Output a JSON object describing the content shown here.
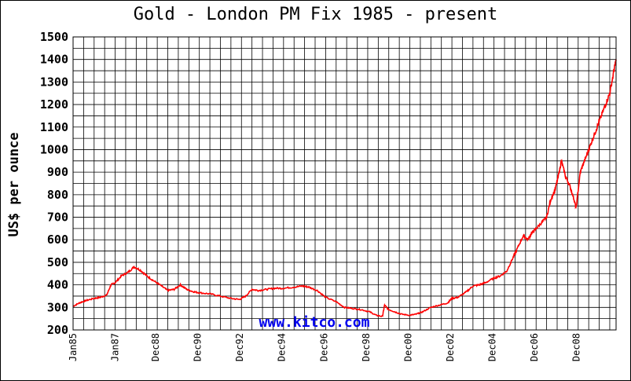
{
  "chart_data": {
    "type": "line",
    "title": "Gold - London PM Fix 1985 - present",
    "ylabel": "US$ per ounce",
    "xlabel": "",
    "ylim": [
      200,
      1500
    ],
    "yticks": [
      "200",
      "300",
      "400",
      "500",
      "600",
      "700",
      "800",
      "900",
      "1000",
      "1100",
      "1200",
      "1300",
      "1400",
      "1500"
    ],
    "xlim": [
      1985.0,
      2010.8
    ],
    "xticks": [
      {
        "label": "Jan85",
        "year": 1985.0
      },
      {
        "label": "Jan87",
        "year": 1987.0
      },
      {
        "label": "Dec88",
        "year": 1988.92
      },
      {
        "label": "Dec90",
        "year": 1990.92
      },
      {
        "label": "Dec92",
        "year": 1992.92
      },
      {
        "label": "Dec94",
        "year": 1994.92
      },
      {
        "label": "Dec96",
        "year": 1996.92
      },
      {
        "label": "Dec98",
        "year": 1998.92
      },
      {
        "label": "Dec00",
        "year": 2000.92
      },
      {
        "label": "Dec02",
        "year": 2002.92
      },
      {
        "label": "Dec04",
        "year": 2004.92
      },
      {
        "label": "Dec06",
        "year": 2006.92
      },
      {
        "label": "Dec08",
        "year": 2008.92
      }
    ],
    "grid": true,
    "line_color": "#ff0000",
    "watermark": "www.kitco.com",
    "series": [
      {
        "x": [
          1985.0,
          1985.3,
          1985.6,
          1986.0,
          1986.3,
          1986.6,
          1986.8,
          1987.0,
          1987.3,
          1987.6,
          1987.9,
          1988.2,
          1988.5,
          1988.8,
          1989.2,
          1989.5,
          1989.8,
          1990.1,
          1990.4,
          1990.7,
          1991.0,
          1991.5,
          1992.0,
          1992.5,
          1992.9,
          1993.2,
          1993.5,
          1993.8,
          1994.2,
          1994.6,
          1995.0,
          1995.5,
          1995.9,
          1996.2,
          1996.6,
          1997.0,
          1997.5,
          1997.9,
          1998.3,
          1998.7,
          1999.1,
          1999.4,
          1999.7,
          1999.8,
          2000.0,
          2000.3,
          2000.6,
          2001.0,
          2001.3,
          2001.6,
          2002.0,
          2002.4,
          2002.8,
          2003.0,
          2003.3,
          2003.7,
          2004.0,
          2004.3,
          2004.6,
          2005.0,
          2005.3,
          2005.6,
          2005.9,
          2006.1,
          2006.4,
          2006.6,
          2006.8,
          2007.0,
          2007.3,
          2007.5,
          2007.7,
          2007.9,
          2008.1,
          2008.2,
          2008.4,
          2008.6,
          2008.8,
          2008.9,
          2009.1,
          2009.3,
          2009.5,
          2009.7,
          2009.9,
          2010.1,
          2010.3,
          2010.5,
          2010.7,
          2010.8
        ],
        "y": [
          305,
          320,
          330,
          340,
          345,
          355,
          400,
          410,
          440,
          455,
          480,
          465,
          440,
          420,
          395,
          375,
          380,
          400,
          380,
          370,
          365,
          360,
          350,
          340,
          335,
          350,
          380,
          375,
          380,
          385,
          385,
          390,
          395,
          390,
          375,
          345,
          325,
          300,
          295,
          290,
          280,
          265,
          260,
          310,
          290,
          280,
          270,
          265,
          270,
          280,
          300,
          310,
          320,
          340,
          345,
          370,
          395,
          400,
          410,
          430,
          440,
          460,
          520,
          560,
          620,
          600,
          630,
          650,
          680,
          700,
          780,
          820,
          900,
          950,
          880,
          840,
          780,
          740,
          900,
          950,
          1000,
          1050,
          1100,
          1150,
          1200,
          1250,
          1350,
          1400
        ]
      }
    ]
  }
}
